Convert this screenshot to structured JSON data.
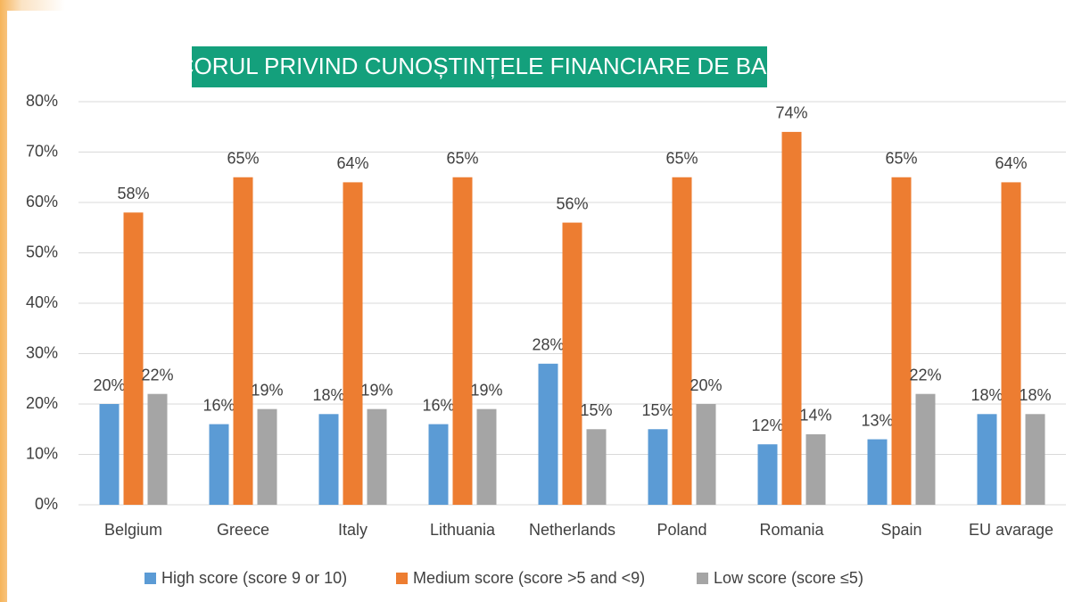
{
  "chart_data": {
    "type": "bar",
    "title": "SCORUL PRIVIND CUNOȘTINȚELE FINANCIARE DE BAZĂ",
    "categories": [
      "Belgium",
      "Greece",
      "Italy",
      "Lithuania",
      "Netherlands",
      "Poland",
      "Romania",
      "Spain",
      "EU avarage"
    ],
    "series": [
      {
        "name": "High score (score 9 or 10)",
        "color": "#5b9bd5",
        "values": [
          20,
          16,
          18,
          16,
          28,
          15,
          12,
          13,
          18
        ],
        "value_labels": [
          "20%",
          "16%",
          "18%",
          "16%",
          "28%",
          "15%",
          "12%",
          "13%",
          "18%"
        ]
      },
      {
        "name": "Medium score (score >5 and <9)",
        "color": "#ed7d31",
        "values": [
          58,
          65,
          64,
          65,
          56,
          65,
          74,
          65,
          64
        ],
        "value_labels": [
          "58%",
          "65%",
          "64%",
          "65%",
          "56%",
          "65%",
          "74%",
          "65%",
          "64%"
        ]
      },
      {
        "name": "Low score (score ≤5)",
        "color": "#a5a5a5",
        "values": [
          22,
          19,
          19,
          19,
          15,
          20,
          14,
          22,
          18
        ],
        "value_labels": [
          "22%",
          "19%",
          "19%",
          "19%",
          "15%",
          "20%",
          "14%",
          "22%",
          "18%"
        ]
      }
    ],
    "ylim": [
      0,
      80
    ],
    "yticks": [
      {
        "value": 0,
        "label": "0%"
      },
      {
        "value": 10,
        "label": "10%"
      },
      {
        "value": 20,
        "label": "20%"
      },
      {
        "value": 30,
        "label": "30%"
      },
      {
        "value": 40,
        "label": "40%"
      },
      {
        "value": 50,
        "label": "50%"
      },
      {
        "value": 60,
        "label": "60%"
      },
      {
        "value": 70,
        "label": "70%"
      },
      {
        "value": 80,
        "label": "80%"
      }
    ],
    "grid": true,
    "legend": "bottom"
  }
}
